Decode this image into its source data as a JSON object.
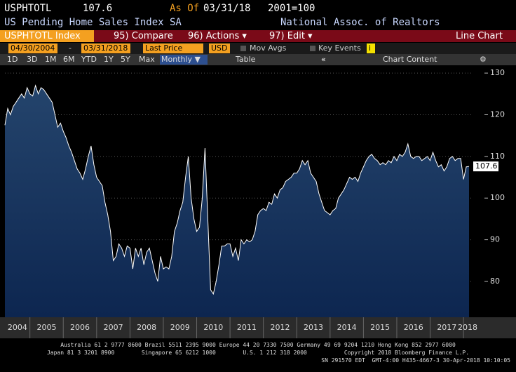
{
  "header": {
    "ticker": "USPHTOTL",
    "last": "107.6",
    "as_of_label": "As Of",
    "as_of": "03/31/18",
    "base": "2001=100",
    "name": "US Pending Home Sales Index SA",
    "source": "National Assoc. of Realtors"
  },
  "menu": {
    "security": "USPHTOTL Index",
    "compare": "95) Compare",
    "actions": "96) Actions ▾",
    "edit": "97) Edit ▾",
    "view": "Line Chart"
  },
  "controls": {
    "start": "04/30/2004",
    "dash": "-",
    "end": "03/31/2018",
    "field": "Last Price",
    "currency": "USD",
    "mov_avgs": "Mov Avgs",
    "key_events": "Key Events",
    "info": "i"
  },
  "toolbar": {
    "ranges": [
      "1D",
      "3D",
      "1M",
      "6M",
      "YTD",
      "1Y",
      "5Y",
      "Max"
    ],
    "period": "Monthly ▼",
    "table": "Table",
    "chart_content": "Chart Content"
  },
  "chart_data": {
    "type": "line",
    "xlim": [
      2004.25,
      2018.25
    ],
    "xticks": [
      2004,
      2005,
      2006,
      2007,
      2008,
      2009,
      2010,
      2011,
      2012,
      2013,
      2014,
      2015,
      2016,
      2017,
      2018
    ],
    "ylim": [
      71.4,
      131.2
    ],
    "yticks": [
      80,
      90,
      100,
      110,
      120,
      130
    ],
    "grid": true,
    "x": [
      "2004-04",
      "2004-05",
      "2004-06",
      "2004-07",
      "2004-08",
      "2004-09",
      "2004-10",
      "2004-11",
      "2004-12",
      "2005-01",
      "2005-02",
      "2005-03",
      "2005-04",
      "2005-05",
      "2005-06",
      "2005-07",
      "2005-08",
      "2005-09",
      "2005-10",
      "2005-11",
      "2005-12",
      "2006-01",
      "2006-02",
      "2006-03",
      "2006-04",
      "2006-05",
      "2006-06",
      "2006-07",
      "2006-08",
      "2006-09",
      "2006-10",
      "2006-11",
      "2006-12",
      "2007-01",
      "2007-02",
      "2007-03",
      "2007-04",
      "2007-05",
      "2007-06",
      "2007-07",
      "2007-08",
      "2007-09",
      "2007-10",
      "2007-11",
      "2007-12",
      "2008-01",
      "2008-02",
      "2008-03",
      "2008-04",
      "2008-05",
      "2008-06",
      "2008-07",
      "2008-08",
      "2008-09",
      "2008-10",
      "2008-11",
      "2008-12",
      "2009-01",
      "2009-02",
      "2009-03",
      "2009-04",
      "2009-05",
      "2009-06",
      "2009-07",
      "2009-08",
      "2009-09",
      "2009-10",
      "2009-11",
      "2009-12",
      "2010-01",
      "2010-02",
      "2010-03",
      "2010-04",
      "2010-05",
      "2010-06",
      "2010-07",
      "2010-08",
      "2010-09",
      "2010-10",
      "2010-11",
      "2010-12",
      "2011-01",
      "2011-02",
      "2011-03",
      "2011-04",
      "2011-05",
      "2011-06",
      "2011-07",
      "2011-08",
      "2011-09",
      "2011-10",
      "2011-11",
      "2011-12",
      "2012-01",
      "2012-02",
      "2012-03",
      "2012-04",
      "2012-05",
      "2012-06",
      "2012-07",
      "2012-08",
      "2012-09",
      "2012-10",
      "2012-11",
      "2012-12",
      "2013-01",
      "2013-02",
      "2013-03",
      "2013-04",
      "2013-05",
      "2013-06",
      "2013-07",
      "2013-08",
      "2013-09",
      "2013-10",
      "2013-11",
      "2013-12",
      "2014-01",
      "2014-02",
      "2014-03",
      "2014-04",
      "2014-05",
      "2014-06",
      "2014-07",
      "2014-08",
      "2014-09",
      "2014-10",
      "2014-11",
      "2014-12",
      "2015-01",
      "2015-02",
      "2015-03",
      "2015-04",
      "2015-05",
      "2015-06",
      "2015-07",
      "2015-08",
      "2015-09",
      "2015-10",
      "2015-11",
      "2015-12",
      "2016-01",
      "2016-02",
      "2016-03",
      "2016-04",
      "2016-05",
      "2016-06",
      "2016-07",
      "2016-08",
      "2016-09",
      "2016-10",
      "2016-11",
      "2016-12",
      "2017-01",
      "2017-02",
      "2017-03",
      "2017-04",
      "2017-05",
      "2017-06",
      "2017-07",
      "2017-08",
      "2017-09",
      "2017-10",
      "2017-11",
      "2017-12",
      "2018-01",
      "2018-02",
      "2018-03"
    ],
    "series": [
      {
        "name": "USPHTOTL",
        "color": "#ffffff",
        "values": [
          117.5,
          121.5,
          120,
          122,
          123,
          124,
          125,
          124,
          126.5,
          125,
          124.5,
          127,
          125,
          126.5,
          126,
          125,
          124,
          123,
          120,
          117,
          118,
          116,
          114.5,
          112.5,
          111,
          109,
          107,
          106,
          104.5,
          107,
          110,
          112.5,
          108,
          105,
          104,
          103,
          99,
          96,
          92,
          85,
          86,
          89,
          88,
          86,
          88.5,
          88,
          83,
          88,
          86,
          88,
          84,
          87,
          88,
          85,
          82,
          80,
          86,
          83,
          83.5,
          83,
          86,
          92,
          94,
          97,
          99,
          105,
          110,
          100,
          95,
          92,
          93,
          100,
          112,
          95,
          78,
          77,
          80,
          84,
          88.5,
          88.5,
          89,
          89,
          86,
          88,
          85,
          90,
          89,
          90,
          89.5,
          90,
          92,
          96,
          97,
          97.5,
          97,
          99,
          98.5,
          101,
          100,
          102,
          102.5,
          104,
          104.5,
          105,
          106,
          106,
          107,
          109,
          108,
          109,
          106,
          105,
          104,
          101,
          99,
          97,
          96.5,
          96,
          97,
          97.5,
          100,
          101,
          102,
          103.5,
          105,
          104.5,
          105,
          104,
          106,
          107.5,
          109,
          110,
          110.5,
          109.5,
          109,
          108,
          108.5,
          108,
          109,
          108.5,
          110,
          109,
          110.5,
          110,
          111,
          113,
          110,
          109.5,
          110,
          110,
          109,
          109.5,
          110,
          109,
          111,
          109,
          107.5,
          108,
          106.5,
          107.5,
          109.5,
          110,
          109,
          109.5,
          109.5,
          104.5,
          107.5,
          107.6
        ]
      }
    ],
    "value_labels": {
      "last": "107.6"
    }
  },
  "footer": {
    "lines": [
      "Australia 61 2 9777 8600 Brazil 5511 2395 9000 Europe 44 20 7330 7500 Germany 49 69 9204 1210 Hong Kong 852 2977 6000",
      "Japan 81 3 3201 8900        Singapore 65 6212 1000        U.S. 1 212 318 2000           Copyright 2018 Bloomberg Finance L.P.",
      "SN 291570 EDT  GMT-4:00 H435-4667-3 30-Apr-2018 10:10:05"
    ]
  }
}
